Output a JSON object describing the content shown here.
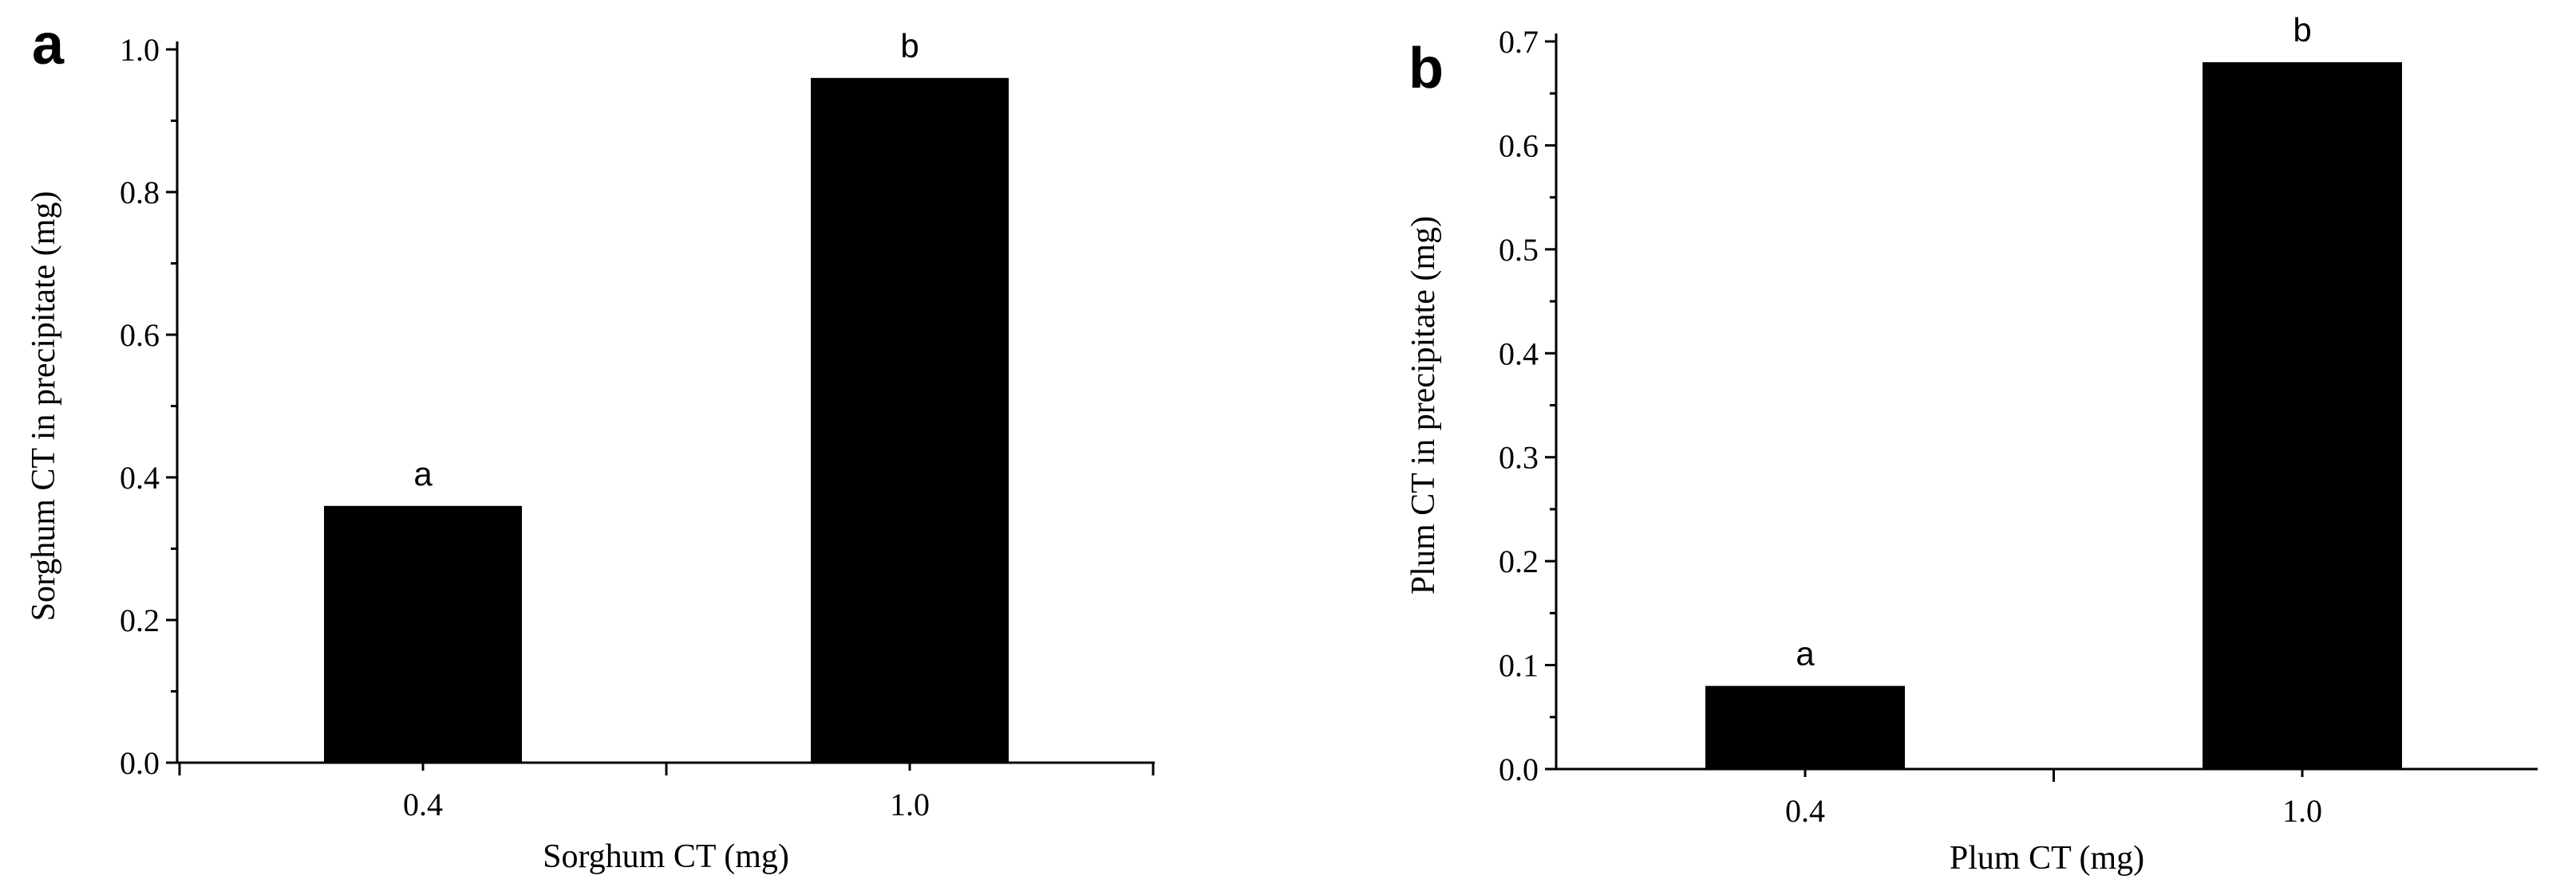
{
  "chart_data": [
    {
      "type": "bar",
      "panel": "a",
      "categories": [
        "0.4",
        "1.0"
      ],
      "values": [
        0.36,
        0.96
      ],
      "significance": [
        "a",
        "b"
      ],
      "xlabel": "Sorghum CT (mg)",
      "ylabel": "Sorghum CT in precipitate (mg)",
      "ylim": [
        0,
        1.0
      ],
      "yticks": [
        "0.0",
        "0.2",
        "0.4",
        "0.6",
        "0.8",
        "1.0"
      ],
      "grid": false,
      "bar_color": "#000000"
    },
    {
      "type": "bar",
      "panel": "b",
      "categories": [
        "0.4",
        "1.0"
      ],
      "values": [
        0.08,
        0.68
      ],
      "significance": [
        "a",
        "b"
      ],
      "xlabel": "Plum CT (mg)",
      "ylabel": "Plum CT in precipitate (mg)",
      "ylim": [
        0,
        0.7
      ],
      "yticks": [
        "0.0",
        "0.1",
        "0.2",
        "0.3",
        "0.4",
        "0.5",
        "0.6",
        "0.7"
      ],
      "grid": false,
      "bar_color": "#000000"
    }
  ]
}
